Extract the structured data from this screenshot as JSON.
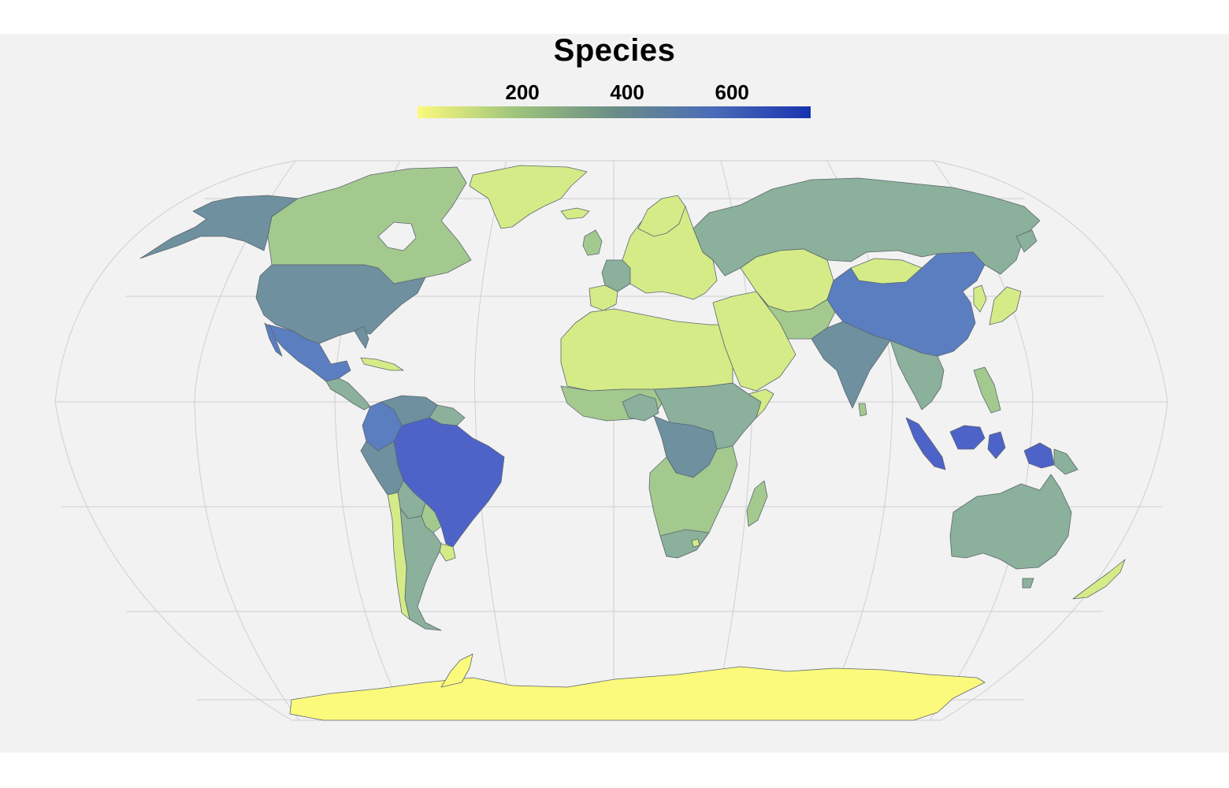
{
  "title": "Species",
  "legend": {
    "min": 0,
    "max": 750,
    "ticks": [
      {
        "value": 200,
        "label": "200"
      },
      {
        "value": 400,
        "label": "400"
      },
      {
        "value": 600,
        "label": "600"
      }
    ],
    "colors": [
      "#fbfa7c",
      "#9ec47c",
      "#6b8d86",
      "#4b6db8",
      "#1833b0"
    ]
  },
  "colors": {
    "background": "#f2f2f2",
    "graticule": "#cfcfcf",
    "border": "#5c6670",
    "very_low": "#fbfa7c",
    "low": "#d5eb87",
    "mid_low": "#a4c98f",
    "mid": "#8bb09b",
    "mid_high": "#6e909f",
    "high": "#5b7ec0",
    "very_high": "#4e63c8"
  },
  "regions": [
    {
      "name": "Greenland",
      "value": 60
    },
    {
      "name": "Canada",
      "value": 200
    },
    {
      "name": "Alaska",
      "value": 380
    },
    {
      "name": "United States",
      "value": 430
    },
    {
      "name": "Mexico",
      "value": 560
    },
    {
      "name": "Central America",
      "value": 320
    },
    {
      "name": "Colombia",
      "value": 470
    },
    {
      "name": "Venezuela",
      "value": 400
    },
    {
      "name": "Guianas",
      "value": 320
    },
    {
      "name": "Peru",
      "value": 440
    },
    {
      "name": "Brazil",
      "value": 680
    },
    {
      "name": "Bolivia",
      "value": 300
    },
    {
      "name": "Paraguay",
      "value": 150
    },
    {
      "name": "Uruguay",
      "value": 120
    },
    {
      "name": "Chile",
      "value": 110
    },
    {
      "name": "Argentina",
      "value": 340
    },
    {
      "name": "Europe",
      "value": 130
    },
    {
      "name": "France",
      "value": 300
    },
    {
      "name": "Russia",
      "value": 300
    },
    {
      "name": "Central Asia",
      "value": 150
    },
    {
      "name": "Mongolia",
      "value": 120
    },
    {
      "name": "China",
      "value": 620
    },
    {
      "name": "India",
      "value": 420
    },
    {
      "name": "Southeast Asia",
      "value": 380
    },
    {
      "name": "Indonesia",
      "value": 690
    },
    {
      "name": "Papua New Guinea",
      "value": 650
    },
    {
      "name": "Japan",
      "value": 200
    },
    {
      "name": "Middle East",
      "value": 110
    },
    {
      "name": "North Africa",
      "value": 100
    },
    {
      "name": "West Africa",
      "value": 230
    },
    {
      "name": "Central Africa",
      "value": 380
    },
    {
      "name": "East Africa",
      "value": 300
    },
    {
      "name": "Southern Africa",
      "value": 220
    },
    {
      "name": "Madagascar",
      "value": 260
    },
    {
      "name": "Australia",
      "value": 330
    },
    {
      "name": "New Zealand",
      "value": 60
    },
    {
      "name": "Antarctica",
      "value": 0
    }
  ]
}
